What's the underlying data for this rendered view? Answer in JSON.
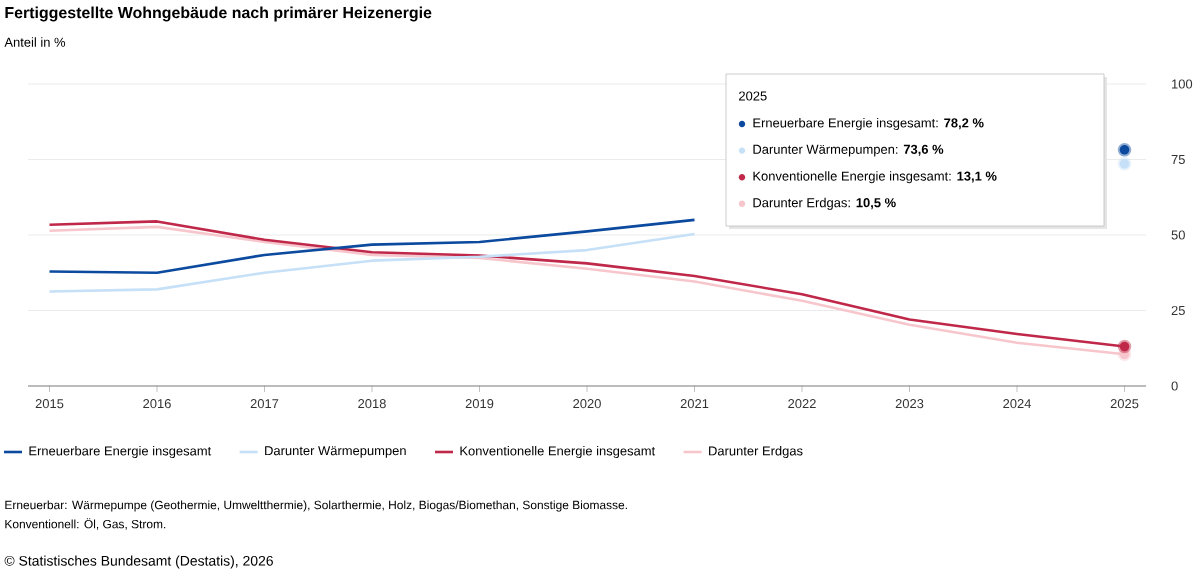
{
  "chart_data": {
    "type": "line",
    "title": "Fertiggestellte Wohngebäude nach primärer Heizenergie",
    "ylabel": "Anteil in %",
    "x": [
      2015,
      2016,
      2017,
      2018,
      2019,
      2020,
      2021,
      2022,
      2023,
      2024,
      2025
    ],
    "series": [
      {
        "name": "Erneuerbare Energie insgesamt",
        "color": "#0b4a9e",
        "values": [
          37.9,
          37.5,
          43.4,
          46.8,
          47.7,
          51.2,
          55.0,
          null,
          null,
          null,
          78.2
        ]
      },
      {
        "name": "Darunter Wärmepumpen",
        "color": "#c6e0f7",
        "values": [
          31.3,
          32.0,
          37.5,
          41.5,
          42.8,
          45.0,
          50.3,
          null,
          null,
          null,
          73.6
        ]
      },
      {
        "name": "Konventionelle Energie insgesamt",
        "color": "#c0284a",
        "values": [
          53.4,
          54.5,
          48.4,
          44.3,
          43.2,
          40.6,
          36.4,
          30.4,
          22.0,
          17.2,
          13.1
        ]
      },
      {
        "name": "Darunter Erdgas",
        "color": "#f7c6cc",
        "values": [
          51.4,
          52.7,
          47.7,
          43.4,
          42.4,
          38.8,
          34.6,
          28.2,
          20.3,
          14.3,
          10.5
        ]
      }
    ],
    "xlim": [
      2014.8,
      2025.2
    ],
    "xticks": [
      2015,
      2016,
      2017,
      2018,
      2019,
      2020,
      2021,
      2022,
      2023,
      2024,
      2025
    ],
    "ylim": [
      0,
      100
    ],
    "yticks": [
      0,
      25,
      50,
      75,
      100
    ],
    "grid": "y",
    "legend": "bottom",
    "marker": "none",
    "line_style": "solid",
    "annotations": [
      "2025",
      "Erneuerbare Energie insgesamt: **78,2 %**",
      "Darunter Wärmepumpen: **73,6 %**",
      "Konventionelle Energie insgesamt: **13,1 %**",
      "Darunter Erdgas: **10,5 %**",
      "Erneuerbar: Wärmepumpe (Geothermie, Umweltthermie), Solarthermie, Holz, Biogas/Biomethan, Sonstige Biomasse.",
      "Konventionell: Öl, Gas, Strom.",
      "© Statistisches Bundesamt (Destatis), 2026"
    ]
  }
}
